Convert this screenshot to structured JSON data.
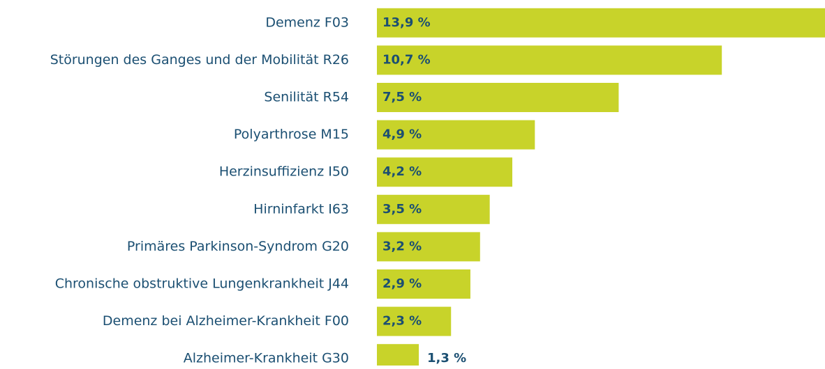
{
  "chart_data": {
    "type": "bar",
    "orientation": "horizontal",
    "categories": [
      "Demenz F03",
      "Störungen des Ganges und der Mobilität R26",
      "Senilität R54",
      "Polyarthrose M15",
      "Herzinsuffizienz I50",
      "Hirninfarkt I63",
      "Primäres Parkinson-Syndrom G20",
      "Chronische obstruktive Lungenkrankheit J44",
      "Demenz bei Alzheimer-Krankheit F00",
      "Alzheimer-Krankheit G30"
    ],
    "values": [
      13.9,
      10.7,
      7.5,
      4.9,
      4.2,
      3.5,
      3.2,
      2.9,
      2.3,
      1.3
    ],
    "value_labels": [
      "13,9 %",
      "10,7 %",
      "7,5 %",
      "4,9 %",
      "4,2 %",
      "3,5 %",
      "3,2 %",
      "2,9 %",
      "2,3 %",
      "1,3 %"
    ],
    "color": "#c8d32a"
  }
}
